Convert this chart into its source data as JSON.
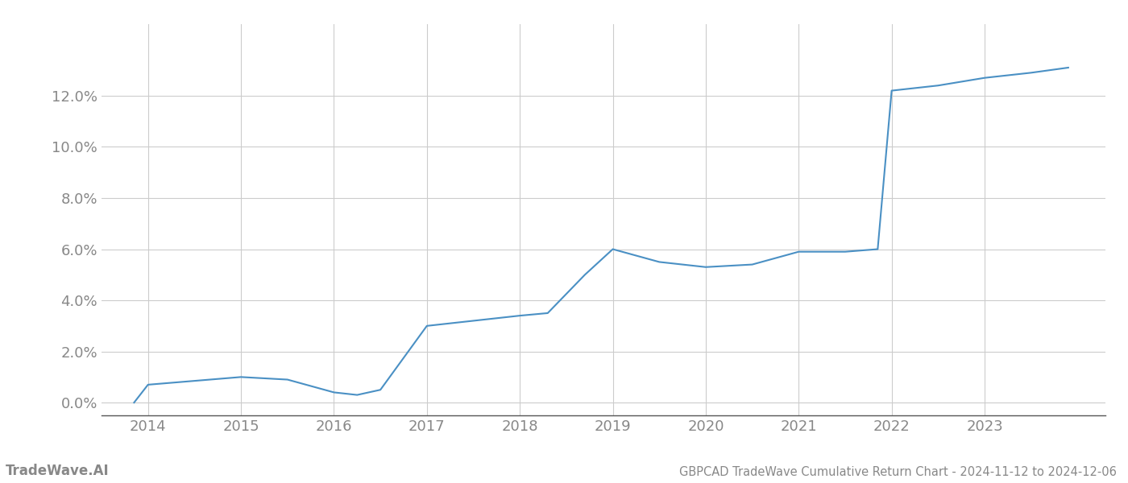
{
  "x_years": [
    2013.85,
    2014.0,
    2014.5,
    2015.0,
    2015.5,
    2016.0,
    2016.25,
    2016.5,
    2017.0,
    2017.5,
    2018.0,
    2018.3,
    2018.7,
    2019.0,
    2019.5,
    2020.0,
    2020.5,
    2021.0,
    2021.5,
    2021.85,
    2022.0,
    2022.5,
    2023.0,
    2023.5,
    2023.9
  ],
  "y_values": [
    0.0,
    0.007,
    0.0085,
    0.01,
    0.009,
    0.004,
    0.003,
    0.005,
    0.03,
    0.032,
    0.034,
    0.035,
    0.05,
    0.06,
    0.055,
    0.053,
    0.054,
    0.059,
    0.059,
    0.06,
    0.122,
    0.124,
    0.127,
    0.129,
    0.131
  ],
  "line_color": "#4a90c4",
  "line_width": 1.5,
  "background_color": "#ffffff",
  "grid_color": "#cccccc",
  "axis_color": "#555555",
  "tick_label_color": "#888888",
  "title": "GBPCAD TradeWave Cumulative Return Chart - 2024-11-12 to 2024-12-06",
  "watermark": "TradeWave.AI",
  "xlim": [
    2013.5,
    2024.3
  ],
  "ylim": [
    -0.005,
    0.148
  ],
  "yticks": [
    0.0,
    0.02,
    0.04,
    0.06,
    0.08,
    0.1,
    0.12
  ],
  "xticks": [
    2014,
    2015,
    2016,
    2017,
    2018,
    2019,
    2020,
    2021,
    2022,
    2023
  ],
  "title_fontsize": 10.5,
  "tick_fontsize": 13,
  "watermark_fontsize": 12
}
